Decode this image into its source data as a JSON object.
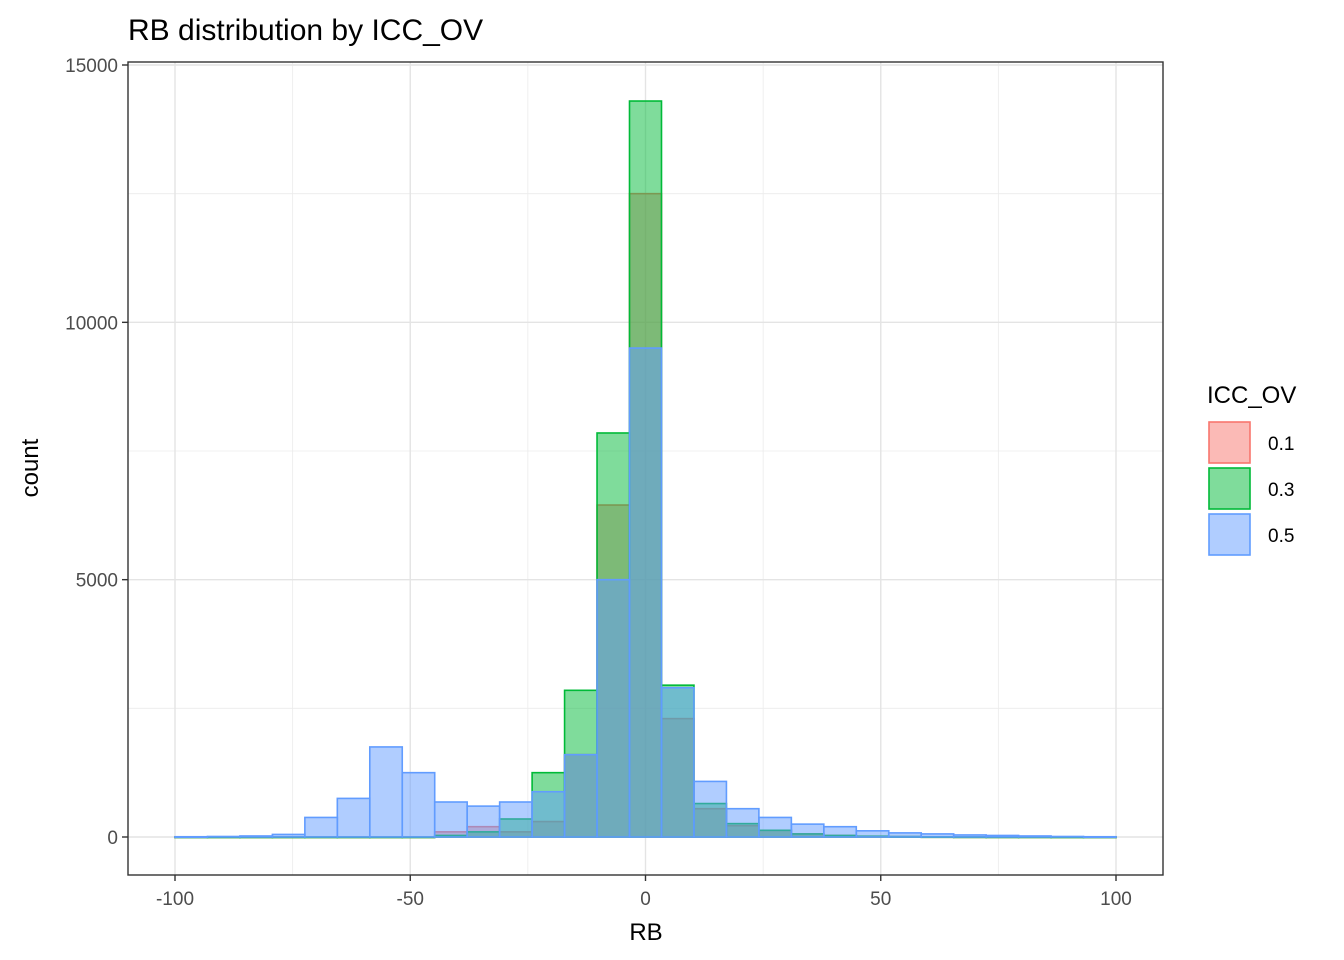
{
  "chart_data": {
    "type": "histogram",
    "title": "RB distribution by ICC_OV",
    "xlabel": "RB",
    "ylabel": "count",
    "xlim": [
      -100,
      100
    ],
    "ylim": [
      0,
      15000
    ],
    "xticks": [
      -100,
      -50,
      0,
      50,
      100
    ],
    "yticks": [
      0,
      5000,
      10000,
      15000
    ],
    "grid": true,
    "legend": {
      "title": "ICC_OV",
      "position": "right"
    },
    "bin_edges": [
      -100,
      -93.1,
      -86.2,
      -79.3,
      -72.4,
      -65.5,
      -58.6,
      -51.7,
      -44.8,
      -37.9,
      -31.0,
      -24.1,
      -17.2,
      -10.3,
      -3.4,
      3.4,
      10.3,
      17.2,
      24.1,
      31.0,
      37.9,
      44.8,
      51.7,
      58.6,
      65.5,
      72.4,
      79.3,
      86.2,
      93.1,
      100
    ],
    "series": [
      {
        "name": "0.1",
        "fill": "#F8766D",
        "values": [
          0,
          0,
          0,
          0,
          0,
          0,
          0,
          0,
          100,
          200,
          100,
          300,
          1600,
          6450,
          12500,
          2300,
          550,
          220,
          130,
          60,
          30,
          15,
          8,
          4,
          2,
          1,
          1,
          0,
          0
        ]
      },
      {
        "name": "0.3",
        "fill": "#00BA38",
        "values": [
          0,
          0,
          0,
          0,
          0,
          0,
          0,
          0,
          30,
          100,
          350,
          1250,
          2850,
          7850,
          14300,
          2950,
          650,
          260,
          130,
          60,
          30,
          15,
          8,
          4,
          2,
          1,
          1,
          0,
          0
        ]
      },
      {
        "name": "0.5",
        "fill": "#619CFF",
        "values": [
          5,
          10,
          20,
          50,
          380,
          750,
          1750,
          1250,
          680,
          600,
          680,
          880,
          1600,
          5000,
          9500,
          2900,
          1080,
          550,
          380,
          250,
          200,
          120,
          80,
          60,
          40,
          30,
          20,
          10,
          5
        ]
      }
    ]
  }
}
